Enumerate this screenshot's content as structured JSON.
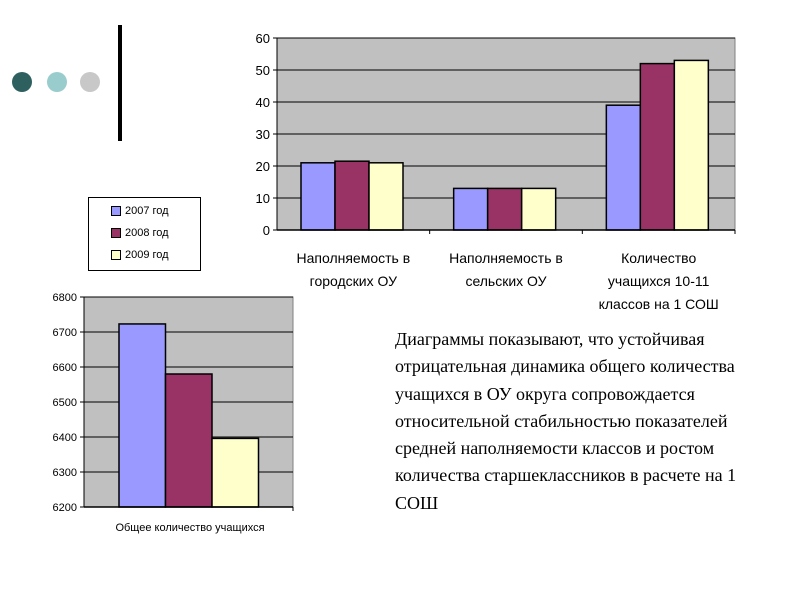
{
  "decor": {
    "dots": [
      "#2f6060",
      "#99cccc",
      "#c8c8c8"
    ]
  },
  "chart_data": [
    {
      "type": "bar",
      "title": "",
      "ylim": [
        0,
        60
      ],
      "yticks": [
        0,
        10,
        20,
        30,
        40,
        50,
        60
      ],
      "categories": [
        "Наполняемость в городских ОУ",
        "Наполняемость в сельских ОУ",
        "Количество учащихся 10-11 классов на 1 СОШ"
      ],
      "category_lines": [
        [
          "Наполняемость в",
          "городских ОУ"
        ],
        [
          "Наполняемость в",
          "сельских ОУ"
        ],
        [
          "Количество",
          "учащихся 10-11",
          "классов на 1 СОШ"
        ]
      ],
      "series": [
        {
          "name": "2007 год",
          "color": "#9999ff",
          "values": [
            21,
            13,
            39
          ]
        },
        {
          "name": "2008 год",
          "color": "#993366",
          "values": [
            21.5,
            13,
            52
          ]
        },
        {
          "name": "2009 год",
          "color": "#ffffcc",
          "values": [
            21,
            13,
            53
          ]
        }
      ],
      "legend": "left",
      "grid": true
    },
    {
      "type": "bar",
      "title": "",
      "ylim": [
        6200,
        6800
      ],
      "yticks": [
        6200,
        6300,
        6400,
        6500,
        6600,
        6700,
        6800
      ],
      "categories": [
        "Общее количество учащихся"
      ],
      "series": [
        {
          "name": "2007 год",
          "color": "#9999ff",
          "values": [
            6723
          ]
        },
        {
          "name": "2008 год",
          "color": "#993366",
          "values": [
            6580
          ]
        },
        {
          "name": "2009 год",
          "color": "#ffffcc",
          "values": [
            6396
          ]
        }
      ],
      "grid": true
    }
  ],
  "legend": {
    "items": [
      "2007 год",
      "2008 год",
      "2009 год"
    ]
  },
  "text": "Диаграммы показывают, что устойчивая отрицательная динамика общего количества учащихся в ОУ округа сопровождается относительной стабильностью показателей средней наполняемости классов и ростом количества старшеклассников в расчете на 1 СОШ"
}
